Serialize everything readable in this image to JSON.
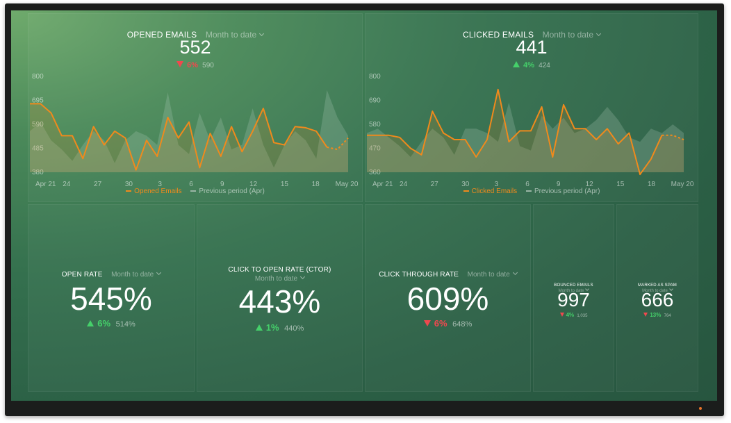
{
  "colors": {
    "accent": "#f08a1c",
    "previous": "#9ab5a5",
    "up": "#45d06a",
    "down": "#f0484e"
  },
  "widgets": {
    "opened": {
      "title": "OPENED EMAILS",
      "range": "Month to date",
      "value": "552",
      "delta": "6%",
      "delta_dir": "down",
      "previous": "590",
      "legend_current": "Opened Emails",
      "legend_previous": "Previous period (Apr)"
    },
    "clicked": {
      "title": "CLICKED EMAILS",
      "range": "Month to date",
      "value": "441",
      "delta": "4%",
      "delta_dir": "up",
      "previous": "424",
      "legend_current": "Clicked Emails",
      "legend_previous": "Previous period (Apr)"
    },
    "open_rate": {
      "title": "OPEN RATE",
      "range": "Month to date",
      "value": "545%",
      "delta": "6%",
      "delta_dir": "up",
      "previous": "514%"
    },
    "ctor": {
      "title": "CLICK TO OPEN RATE (CTOR)",
      "range": "Month to date",
      "value": "443%",
      "delta": "1%",
      "delta_dir": "up",
      "previous": "440%"
    },
    "ctr": {
      "title": "CLICK THROUGH RATE",
      "range": "Month to date",
      "value": "609%",
      "delta": "6%",
      "delta_dir": "down",
      "previous": "648%"
    },
    "bounced": {
      "title": "BOUNCED EMAILS",
      "range": "Month to date",
      "value": "997",
      "delta": "4%",
      "delta_dir": "down",
      "previous": "1,035"
    },
    "spam": {
      "title": "MARKED AS SPAM",
      "range": "Month to date",
      "value": "666",
      "delta": "13%",
      "delta_dir": "down",
      "previous": "764"
    }
  },
  "chart_data": [
    {
      "type": "line",
      "ylim": [
        380,
        800
      ],
      "yticks": [
        "800",
        "695",
        "590",
        "485",
        "380"
      ],
      "xticks": [
        "Apr 21",
        "24",
        "27",
        "30",
        "3",
        "6",
        "9",
        "12",
        "15",
        "18",
        "May 20"
      ],
      "series": [
        {
          "name": "Opened Emails",
          "values": [
            680,
            680,
            640,
            540,
            540,
            440,
            580,
            500,
            560,
            530,
            390,
            520,
            450,
            620,
            530,
            600,
            400,
            550,
            450,
            580,
            470,
            560,
            660,
            510,
            500,
            580,
            575,
            560,
            490,
            480,
            530
          ]
        },
        {
          "name": "Previous period (Apr)",
          "values": [
            560,
            600,
            520,
            480,
            430,
            500,
            560,
            520,
            420,
            520,
            560,
            540,
            500,
            730,
            500,
            460,
            640,
            520,
            620,
            480,
            500,
            660,
            500,
            400,
            500,
            560,
            520,
            440,
            740,
            620,
            540
          ]
        }
      ]
    },
    {
      "type": "line",
      "ylim": [
        360,
        800
      ],
      "yticks": [
        "800",
        "690",
        "580",
        "470",
        "360"
      ],
      "xticks": [
        "Apr 21",
        "24",
        "27",
        "30",
        "3",
        "6",
        "9",
        "12",
        "15",
        "18",
        "May 20"
      ],
      "series": [
        {
          "name": "Clicked Emails",
          "values": [
            530,
            530,
            530,
            520,
            470,
            440,
            640,
            540,
            510,
            510,
            430,
            510,
            740,
            500,
            550,
            550,
            660,
            430,
            670,
            560,
            560,
            510,
            560,
            490,
            540,
            350,
            420,
            530,
            530,
            510
          ]
        },
        {
          "name": "Previous period (Apr)",
          "values": [
            540,
            560,
            520,
            480,
            430,
            500,
            560,
            520,
            440,
            560,
            560,
            540,
            500,
            680,
            480,
            460,
            620,
            560,
            610,
            540,
            560,
            600,
            660,
            600,
            520,
            500,
            560,
            540,
            580,
            540
          ]
        }
      ]
    }
  ]
}
